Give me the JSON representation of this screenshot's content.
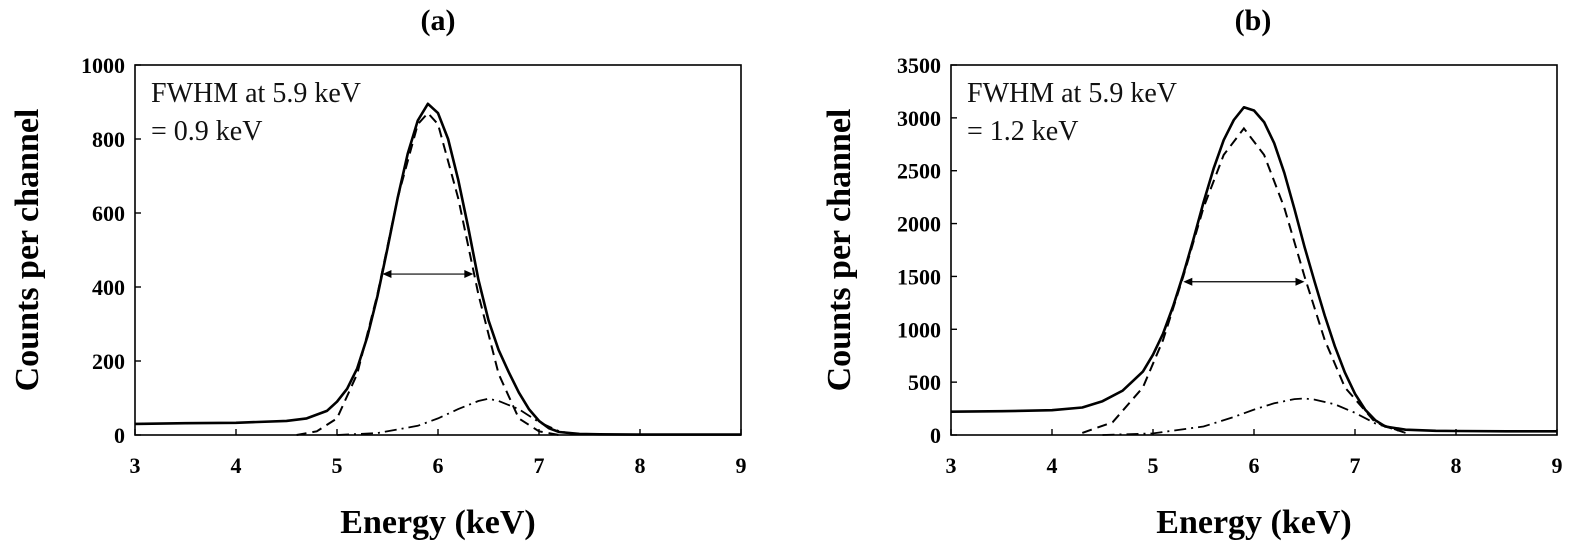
{
  "chart_data": [
    {
      "type": "line",
      "panel_label": "(a)",
      "xlabel": "Energy (keV)",
      "ylabel": "Counts per channel",
      "xlim": [
        3,
        9
      ],
      "ylim": [
        0,
        1000
      ],
      "xticks": [
        3,
        4,
        5,
        6,
        7,
        8,
        9
      ],
      "yticks": [
        0,
        200,
        400,
        600,
        800,
        1000
      ],
      "annotation": [
        "FWHM at 5.9 keV",
        "= 0.9 keV"
      ],
      "fwhm_marker": {
        "x1": 5.45,
        "x2": 6.35,
        "y": 435
      },
      "series": [
        {
          "style": "solid",
          "x": [
            3.0,
            3.5,
            4.0,
            4.5,
            4.7,
            4.9,
            5.0,
            5.1,
            5.2,
            5.3,
            5.4,
            5.5,
            5.6,
            5.7,
            5.8,
            5.9,
            6.0,
            6.1,
            6.2,
            6.3,
            6.4,
            6.5,
            6.6,
            6.7,
            6.8,
            6.9,
            7.0,
            7.1,
            7.2,
            7.4,
            7.6,
            8.0,
            9.0
          ],
          "y": [
            30,
            32,
            33,
            38,
            45,
            65,
            90,
            125,
            180,
            265,
            375,
            505,
            640,
            760,
            850,
            895,
            870,
            800,
            690,
            560,
            420,
            310,
            230,
            170,
            115,
            70,
            38,
            18,
            8,
            3,
            2,
            1,
            1
          ]
        },
        {
          "style": "dashed",
          "x": [
            4.6,
            4.8,
            5.0,
            5.2,
            5.4,
            5.6,
            5.8,
            5.9,
            6.0,
            6.2,
            6.4,
            6.6,
            6.8,
            7.0,
            7.2
          ],
          "y": [
            0,
            10,
            45,
            165,
            380,
            640,
            840,
            870,
            840,
            640,
            380,
            165,
            45,
            10,
            0
          ]
        },
        {
          "style": "dash-dot",
          "x": [
            5.0,
            5.4,
            5.8,
            6.0,
            6.2,
            6.4,
            6.5,
            6.6,
            6.8,
            7.0,
            7.2,
            7.4
          ],
          "y": [
            0,
            5,
            25,
            45,
            70,
            92,
            98,
            92,
            70,
            35,
            10,
            0
          ]
        }
      ]
    },
    {
      "type": "line",
      "panel_label": "(b)",
      "xlabel": "Energy (keV)",
      "ylabel": "Counts per channel",
      "xlim": [
        3,
        9
      ],
      "ylim": [
        0,
        3500
      ],
      "xticks": [
        3,
        4,
        5,
        6,
        7,
        8,
        9
      ],
      "yticks": [
        0,
        500,
        1000,
        1500,
        2000,
        2500,
        3000,
        3500
      ],
      "annotation": [
        "FWHM at 5.9 keV",
        "= 1.2 keV"
      ],
      "fwhm_marker": {
        "x1": 5.3,
        "x2": 6.5,
        "y": 1450
      },
      "series": [
        {
          "style": "solid",
          "x": [
            3.0,
            3.5,
            4.0,
            4.3,
            4.5,
            4.7,
            4.9,
            5.0,
            5.1,
            5.2,
            5.3,
            5.4,
            5.5,
            5.6,
            5.7,
            5.8,
            5.9,
            6.0,
            6.1,
            6.2,
            6.3,
            6.4,
            6.5,
            6.6,
            6.7,
            6.8,
            6.9,
            7.0,
            7.1,
            7.2,
            7.3,
            7.5,
            7.8,
            8.0,
            8.5,
            9.0
          ],
          "y": [
            220,
            225,
            235,
            260,
            320,
            420,
            600,
            760,
            960,
            1220,
            1520,
            1850,
            2200,
            2520,
            2790,
            2980,
            3100,
            3070,
            2960,
            2760,
            2480,
            2140,
            1780,
            1450,
            1130,
            840,
            590,
            390,
            240,
            140,
            80,
            50,
            40,
            38,
            35,
            35
          ]
        },
        {
          "style": "dashed",
          "x": [
            4.3,
            4.6,
            4.9,
            5.1,
            5.3,
            5.5,
            5.7,
            5.9,
            6.1,
            6.3,
            6.5,
            6.7,
            6.9,
            7.2,
            7.5
          ],
          "y": [
            20,
            120,
            450,
            900,
            1500,
            2150,
            2650,
            2900,
            2650,
            2150,
            1500,
            900,
            450,
            120,
            20
          ]
        },
        {
          "style": "dash-dot",
          "x": [
            4.5,
            5.0,
            5.5,
            5.8,
            6.0,
            6.2,
            6.4,
            6.5,
            6.6,
            6.8,
            7.0,
            7.2,
            7.5
          ],
          "y": [
            0,
            15,
            80,
            170,
            240,
            300,
            340,
            345,
            335,
            290,
            210,
            110,
            20
          ]
        }
      ]
    }
  ]
}
